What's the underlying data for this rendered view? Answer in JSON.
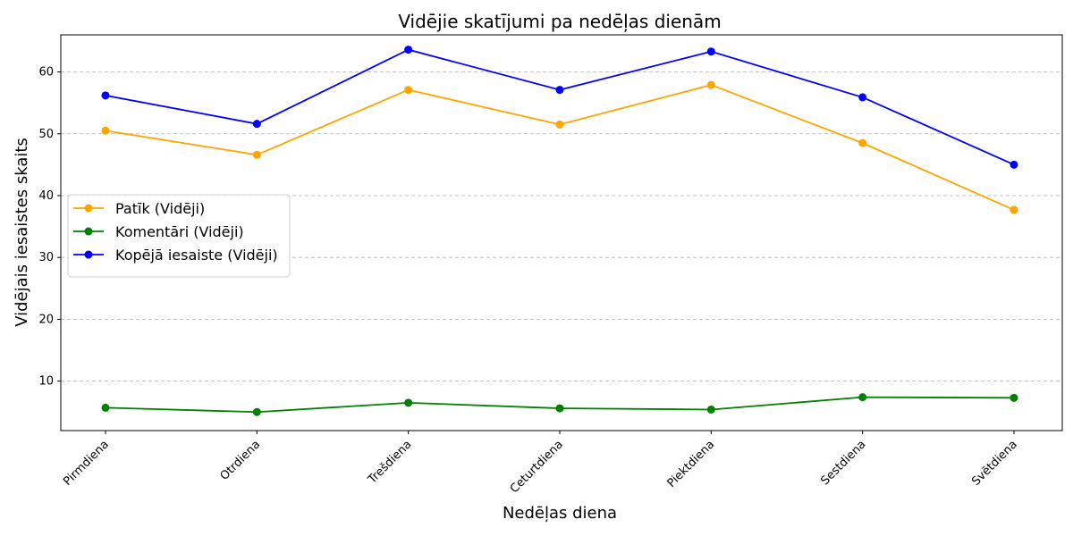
{
  "chart_data": {
    "type": "line",
    "title": "Vidējie skatījumi pa nedēļas dienām",
    "xlabel": "Nedēļas diena",
    "ylabel": "Vidējais iesaistes skaits",
    "categories": [
      "Pirmdiena",
      "Otrdiena",
      "Trešdiena",
      "Ceturtdiena",
      "Piektdiena",
      "Sestdiena",
      "Svētdiena"
    ],
    "ylim": [
      2,
      66
    ],
    "yticks": [
      10,
      20,
      30,
      40,
      50,
      60
    ],
    "grid": "y-dashed",
    "legend_position": "center-left",
    "series": [
      {
        "name": "Patīk (Vidēji)",
        "color": "#FFA500",
        "values": [
          50.5,
          46.6,
          57.1,
          51.5,
          57.9,
          48.5,
          37.7
        ]
      },
      {
        "name": "Komentāri (Vidēji)",
        "color": "#008000",
        "values": [
          5.7,
          5.0,
          6.5,
          5.6,
          5.4,
          7.4,
          7.3
        ]
      },
      {
        "name": "Kopējā iesaiste (Vidēji)",
        "color": "#0000FF",
        "values": [
          56.2,
          51.6,
          63.6,
          57.1,
          63.3,
          55.9,
          45.0
        ]
      }
    ]
  }
}
